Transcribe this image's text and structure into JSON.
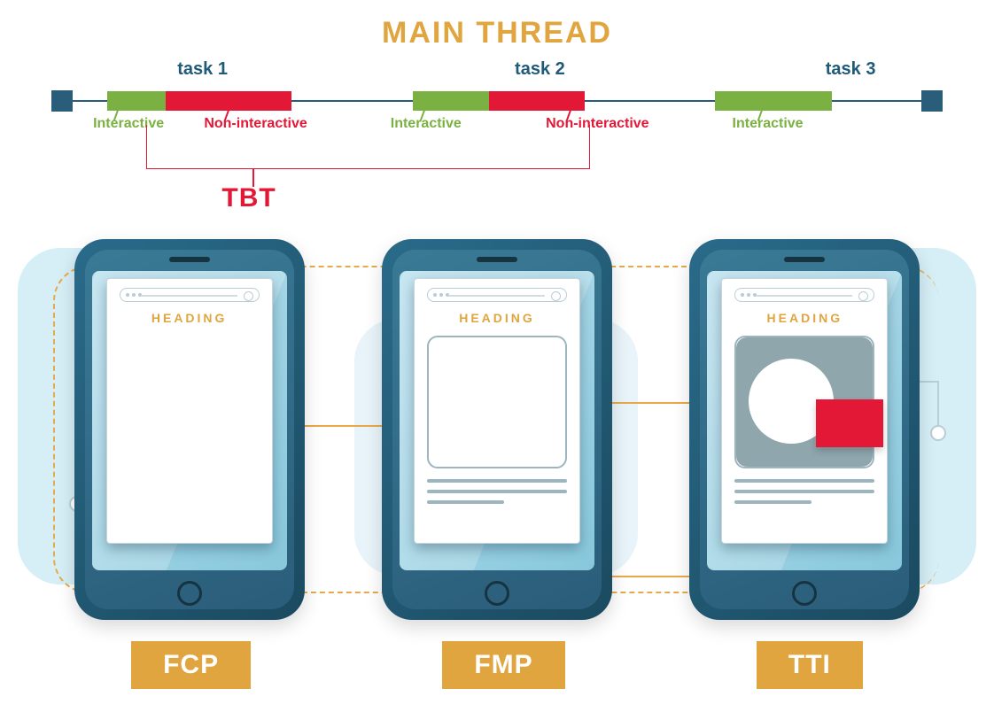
{
  "title": "MAIN THREAD",
  "colors": {
    "gold": "#e0a53e",
    "teal_text": "#1f5a78",
    "green": "#7bb042",
    "red": "#e31837",
    "axis": "#2a5d7a",
    "blob": "#d6eef6",
    "blob_alt": "#e8f4f9",
    "pill_bg": "#e0a53e",
    "pill_text": "#ffffff"
  },
  "timeline": {
    "tasks": [
      {
        "label": "task 1",
        "x_pct": 14
      },
      {
        "label": "task 2",
        "x_pct": 52
      },
      {
        "label": "task 3",
        "x_pct": 87
      }
    ],
    "segments": [
      {
        "kind": "interactive",
        "left_pct": 3.5,
        "width_pct": 7.0,
        "label": "Interactive",
        "label_x_pct": 4.5,
        "tick_x_pct": 7.0
      },
      {
        "kind": "non-interactive",
        "left_pct": 10.5,
        "width_pct": 15.0,
        "label": "Non-interactive",
        "label_x_pct": 17.0,
        "tick_x_pct": 19.5
      },
      {
        "kind": "interactive",
        "left_pct": 40.0,
        "width_pct": 9.0,
        "label": "Interactive",
        "label_x_pct": 38.0,
        "tick_x_pct": 41.5
      },
      {
        "kind": "non-interactive",
        "left_pct": 49.0,
        "width_pct": 11.5,
        "label": "Non-interactive",
        "label_x_pct": 55.5,
        "tick_x_pct": 58.0
      },
      {
        "kind": "interactive",
        "left_pct": 76.0,
        "width_pct": 14.0,
        "label": "Interactive",
        "label_x_pct": 76.5,
        "tick_x_pct": 79.5
      }
    ],
    "tbt": {
      "label": "TBT",
      "bracket_left_pct": 10.5,
      "bracket_right_pct": 60.5,
      "stem_x_pct": 22.5,
      "label_x_pct": 19.0
    }
  },
  "phones": {
    "heading_text": "HEADING",
    "items": [
      {
        "id": "fcp",
        "metric": "FCP",
        "content": "blank"
      },
      {
        "id": "fmp",
        "metric": "FMP",
        "content": "frame"
      },
      {
        "id": "tti",
        "metric": "TTI",
        "content": "full"
      }
    ]
  }
}
